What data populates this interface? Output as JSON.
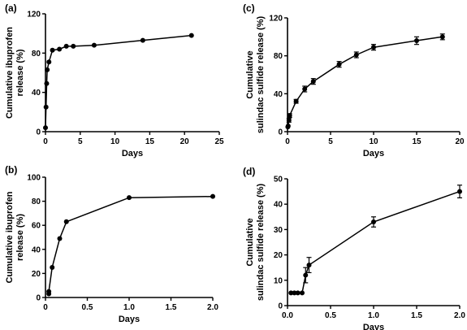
{
  "chart_data": [
    {
      "panel": "(a)",
      "type": "line",
      "xlabel": "Days",
      "ylabel": [
        "Cumulative ibuprofen",
        "release (%)"
      ],
      "xlim": [
        0,
        25
      ],
      "ylim": [
        0,
        120
      ],
      "xticks": [
        0,
        5,
        10,
        15,
        20,
        25
      ],
      "yticks": [
        0,
        40,
        80,
        120
      ],
      "series": [
        {
          "x": [
            0,
            0.08,
            0.17,
            0.25,
            0.5,
            1,
            2,
            3,
            4,
            7,
            14,
            21
          ],
          "y": [
            4,
            25,
            49,
            63,
            71,
            83,
            84,
            87,
            87,
            88,
            93,
            98
          ],
          "err": []
        }
      ]
    },
    {
      "panel": "(b)",
      "type": "line",
      "xlabel": "Days",
      "ylabel": [
        "Cumulative ibuprofen",
        "release (%)"
      ],
      "xlim": [
        0,
        2
      ],
      "ylim": [
        0,
        100
      ],
      "xticks": [
        0,
        0.5,
        1,
        1.5,
        2
      ],
      "xtick_labels": [
        "0",
        "0.5",
        "1.0",
        "1.5",
        "2.0"
      ],
      "yticks": [
        0,
        20,
        40,
        60,
        80,
        100
      ],
      "series": [
        {
          "x": [
            0.04,
            0.04,
            0.08,
            0.17,
            0.25,
            1,
            2
          ],
          "y": [
            3,
            5,
            25,
            49,
            63,
            83,
            84
          ],
          "err": []
        }
      ]
    },
    {
      "panel": "(c)",
      "type": "line",
      "xlabel": "Days",
      "ylabel": [
        "Cumulative",
        "sulindac sulfide release (%)"
      ],
      "xlim": [
        0,
        20
      ],
      "ylim": [
        0,
        120
      ],
      "xticks": [
        0,
        5,
        10,
        15,
        20
      ],
      "yticks": [
        0,
        40,
        80,
        120
      ],
      "series": [
        {
          "x": [
            0.04,
            0.08,
            0.17,
            0.25,
            1,
            2,
            3,
            6,
            8,
            10,
            15,
            18
          ],
          "y": [
            5,
            6,
            12,
            17,
            32,
            45,
            53,
            71,
            81,
            89,
            96,
            100
          ],
          "err": [
            0,
            0,
            2,
            2,
            2,
            3,
            3,
            3,
            3,
            3,
            4,
            3
          ]
        }
      ]
    },
    {
      "panel": "(d)",
      "type": "line",
      "xlabel": "Days",
      "ylabel": [
        "Cumulative",
        "sulindac sulfide release (%)"
      ],
      "xlim": [
        0,
        2
      ],
      "ylim": [
        0,
        50
      ],
      "xticks": [
        0,
        0.5,
        1,
        1.5,
        2
      ],
      "xtick_labels": [
        "0.0",
        "0.5",
        "1.0",
        "1.5",
        "2.0"
      ],
      "yticks": [
        0,
        10,
        20,
        30,
        40,
        50
      ],
      "series": [
        {
          "x": [
            0.04,
            0.08,
            0.12,
            0.17,
            0.21,
            0.25,
            1,
            2
          ],
          "y": [
            5,
            5,
            5,
            5,
            12,
            16,
            33,
            45
          ],
          "err": [
            0,
            0,
            0,
            0,
            3,
            3,
            2,
            2.5
          ]
        }
      ]
    }
  ]
}
